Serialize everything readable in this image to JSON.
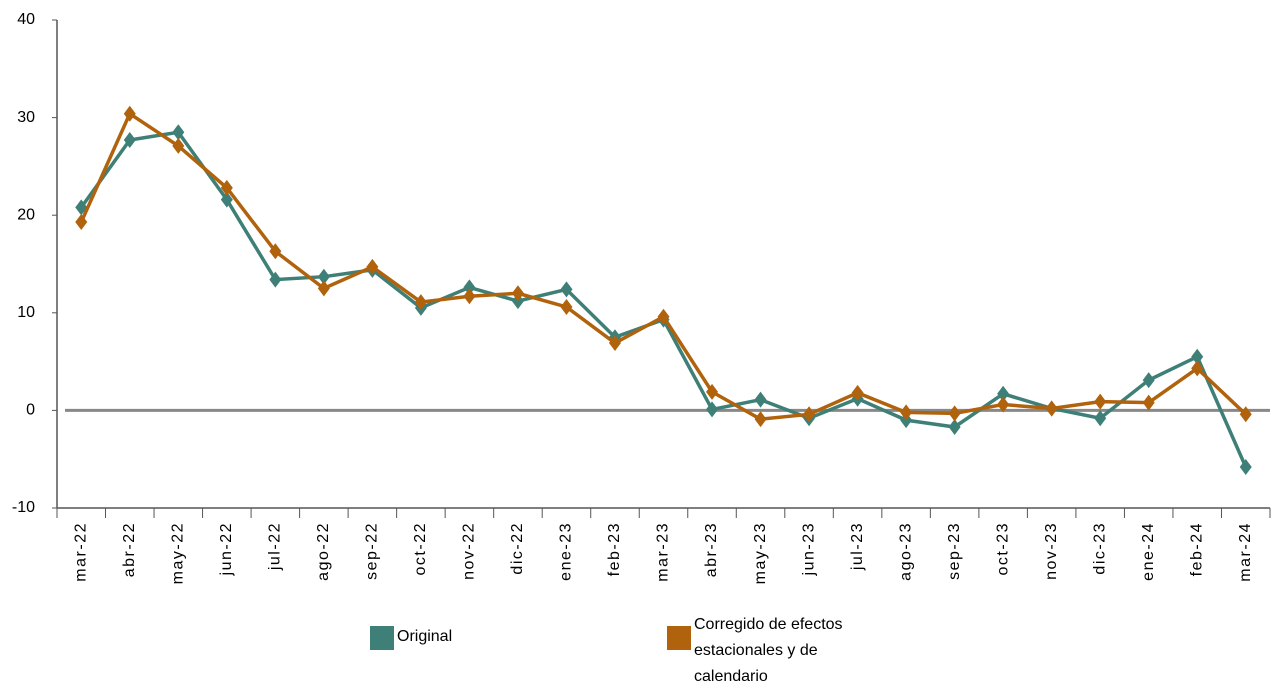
{
  "chart_data": {
    "type": "line",
    "categories": [
      "mar-22",
      "abr-22",
      "may-22",
      "jun-22",
      "jul-22",
      "ago-22",
      "sep-22",
      "oct-22",
      "nov-22",
      "dic-22",
      "ene-23",
      "feb-23",
      "mar-23",
      "abr-23",
      "may-23",
      "jun-23",
      "jul-23",
      "ago-23",
      "sep-23",
      "oct-23",
      "nov-23",
      "dic-23",
      "ene-24",
      "feb-24",
      "mar-24"
    ],
    "series": [
      {
        "name": "Original",
        "color": "#3e7f77",
        "values": [
          20.8,
          27.7,
          28.5,
          21.6,
          13.4,
          13.7,
          14.4,
          10.5,
          12.6,
          11.2,
          12.4,
          7.5,
          9.3,
          0.1,
          1.1,
          -0.8,
          1.2,
          -1.0,
          -1.7,
          1.7,
          0.2,
          -0.8,
          3.1,
          5.5,
          -5.8
        ]
      },
      {
        "name": "Corregido de efectos estacionales y de calendario",
        "color": "#b0620c",
        "values": [
          19.3,
          30.4,
          27.1,
          22.8,
          16.3,
          12.5,
          14.7,
          11.1,
          11.7,
          12.0,
          10.6,
          6.9,
          9.6,
          1.9,
          -0.9,
          -0.4,
          1.8,
          -0.2,
          -0.3,
          0.6,
          0.2,
          0.9,
          0.8,
          4.3,
          -0.4
        ]
      }
    ],
    "ylim": [
      -10,
      40
    ],
    "yticks": [
      -10,
      0,
      10,
      20,
      30,
      40
    ]
  }
}
